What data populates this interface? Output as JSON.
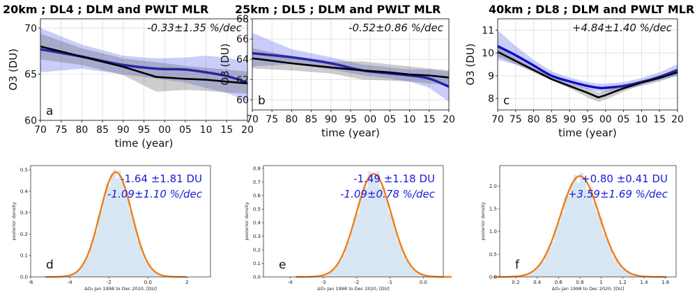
{
  "chart_data": [
    {
      "type": "line",
      "title": "20km ; DL4 ; DLM and PWLT MLR",
      "xlabel": "time (year)",
      "ylabel": "O3 (DU)",
      "annotation": "-0.33±1.35 %/dec",
      "panel_letter": "a",
      "x_tick_labels": [
        "70",
        "75",
        "80",
        "85",
        "90",
        "95",
        "00",
        "05",
        "10",
        "15",
        "20"
      ],
      "x": [
        1970,
        1980,
        1990,
        1998,
        2005,
        2010,
        2015,
        2020
      ],
      "xlim": [
        1970,
        2020
      ],
      "ylim": [
        60,
        71
      ],
      "yticks": [
        60,
        65,
        70
      ],
      "series": [
        {
          "values": [
            67.7,
            66.9,
            66.0,
            65.6,
            65.5,
            65.2,
            64.8,
            64.1
          ],
          "band_lower": [
            65.2,
            65.6,
            65.0,
            64.5,
            64.1,
            63.5,
            63.0,
            62.0
          ],
          "band_upper": [
            70.0,
            68.2,
            67.0,
            66.7,
            66.8,
            67.0,
            66.8,
            66.3
          ],
          "color": "#1010c8"
        },
        {
          "values": [
            68.0,
            66.9,
            65.8,
            64.7,
            64.5,
            64.4,
            64.2,
            64.0
          ],
          "band_lower": [
            66.6,
            66.0,
            64.9,
            63.1,
            63.3,
            63.2,
            63.0,
            62.9
          ],
          "band_upper": [
            69.4,
            67.8,
            66.7,
            66.3,
            65.9,
            65.7,
            65.5,
            65.3
          ],
          "color": "#000000"
        }
      ]
    },
    {
      "type": "line",
      "title": "25km ; DL5 ; DLM and PWLT MLR",
      "xlabel": "time (year)",
      "ylabel": "O3 (DU)",
      "annotation": "-0.52±0.86 %/dec",
      "panel_letter": "b",
      "x_tick_labels": [
        "70",
        "75",
        "80",
        "85",
        "90",
        "95",
        "00",
        "05",
        "10",
        "15",
        "20"
      ],
      "x": [
        1970,
        1980,
        1990,
        1998,
        2005,
        2010,
        2015,
        2020
      ],
      "xlim": [
        1970,
        2020
      ],
      "ylim": [
        59,
        68
      ],
      "yticks": [
        60,
        62,
        64,
        66,
        68
      ],
      "series": [
        {
          "values": [
            64.6,
            64.2,
            63.6,
            62.9,
            62.6,
            62.4,
            62.1,
            61.3
          ],
          "band_lower": [
            63.3,
            63.5,
            63.0,
            62.4,
            62.1,
            61.8,
            61.2,
            59.8
          ],
          "band_upper": [
            66.6,
            65.0,
            64.2,
            63.5,
            63.2,
            63.0,
            63.0,
            62.8
          ],
          "color": "#1010c8"
        },
        {
          "values": [
            64.1,
            63.6,
            63.2,
            62.9,
            62.7,
            62.5,
            62.4,
            62.2
          ],
          "band_lower": [
            63.1,
            62.9,
            62.6,
            62.0,
            61.9,
            61.8,
            61.6,
            61.5
          ],
          "band_upper": [
            65.1,
            64.3,
            63.8,
            63.8,
            63.5,
            63.3,
            63.1,
            62.9
          ],
          "color": "#000000"
        }
      ]
    },
    {
      "type": "line",
      "title": "40km ; DL8 ; DLM and PWLT MLR",
      "xlabel": "time (year)",
      "ylabel": "O3 (DU)",
      "annotation": "+4.84±1.40 %/dec",
      "panel_letter": "c",
      "x_tick_labels": [
        "70",
        "75",
        "80",
        "85",
        "90",
        "95",
        "00",
        "05",
        "10",
        "15",
        "20"
      ],
      "x": [
        1970,
        1975,
        1980,
        1985,
        1990,
        1995,
        1998,
        2000,
        2005,
        2010,
        2015,
        2020
      ],
      "xlim": [
        1970,
        2020
      ],
      "ylim": [
        7.5,
        11.5
      ],
      "yticks": [
        8,
        9,
        10,
        11
      ],
      "series": [
        {
          "values": [
            10.3,
            9.9,
            9.45,
            9.0,
            8.75,
            8.55,
            8.47,
            8.47,
            8.55,
            8.72,
            8.95,
            9.25
          ],
          "band_lower": [
            9.7,
            9.5,
            9.2,
            8.85,
            8.6,
            8.4,
            8.3,
            8.3,
            8.4,
            8.55,
            8.75,
            9.0
          ],
          "band_upper": [
            11.0,
            10.3,
            9.7,
            9.2,
            8.92,
            8.72,
            8.65,
            8.65,
            8.72,
            8.9,
            9.15,
            9.5
          ],
          "color": "#1010c8"
        },
        {
          "values": [
            10.05,
            9.65,
            9.25,
            8.85,
            8.55,
            8.25,
            8.05,
            8.15,
            8.45,
            8.7,
            8.9,
            9.15
          ],
          "band_lower": [
            9.85,
            9.5,
            9.15,
            8.8,
            8.45,
            8.05,
            7.85,
            7.95,
            8.3,
            8.6,
            8.8,
            9.0
          ],
          "band_upper": [
            10.25,
            9.8,
            9.35,
            8.95,
            8.65,
            8.45,
            8.25,
            8.35,
            8.6,
            8.8,
            9.0,
            9.3
          ],
          "color": "#000000"
        }
      ]
    },
    {
      "type": "bar",
      "subtype": "histogram-with-kde",
      "xlabel": "ΔO₃ Jan 1998 to Dec 2020, [DU]",
      "ylabel": "posterior density",
      "annotation_line1": "-1.64 ±1.81 DU",
      "annotation_line2": "-1.09±1.10 %/dec",
      "panel_letter": "d",
      "xlim": [
        -6,
        3.2
      ],
      "xticks": [
        -6,
        -4,
        -2,
        0,
        2
      ],
      "ylim": [
        0,
        0.52
      ],
      "yticks": [
        0.0,
        0.1,
        0.2,
        0.3,
        0.4,
        0.5
      ],
      "distribution": {
        "mean": -1.64,
        "sd": 0.8,
        "peak": 0.49
      }
    },
    {
      "type": "bar",
      "subtype": "histogram-with-kde",
      "xlabel": "ΔO₃ Jan 1998 to Dec 2020, [DU]",
      "ylabel": "posterior density",
      "annotation_line1": "-1.49 ±1.18 DU",
      "annotation_line2": "-1.09±0.78 %/dec",
      "panel_letter": "e",
      "xlim": [
        -4.8,
        0.6
      ],
      "xticks": [
        -4,
        -3,
        -2,
        -1,
        0
      ],
      "ylim": [
        0,
        0.82
      ],
      "yticks": [
        0.0,
        0.1,
        0.2,
        0.3,
        0.4,
        0.5,
        0.6,
        0.7,
        0.8
      ],
      "distribution": {
        "mean": -1.49,
        "sd": 0.52,
        "peak": 0.76
      }
    },
    {
      "type": "bar",
      "subtype": "histogram-with-kde",
      "xlabel": "ΔO₃ Jan 1998 to Dec 2020, [DU]",
      "ylabel": "posterior density",
      "annotation_line1": "+0.80 ±0.41 DU",
      "annotation_line2": "+3.59±1.69 %/dec",
      "panel_letter": "f",
      "xlim": [
        0.05,
        1.7
      ],
      "xticks": [
        0.2,
        0.4,
        0.6,
        0.8,
        1.0,
        1.2,
        1.4,
        1.6
      ],
      "ylim": [
        0,
        2.45
      ],
      "yticks": [
        0.0,
        0.5,
        1.0,
        1.5,
        2.0
      ],
      "distribution": {
        "mean": 0.8,
        "sd": 0.18,
        "peak": 2.22
      }
    }
  ]
}
